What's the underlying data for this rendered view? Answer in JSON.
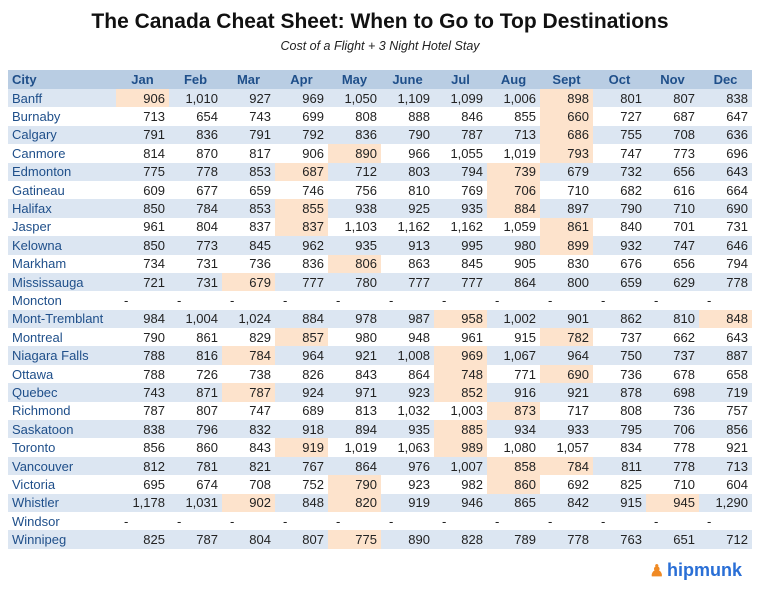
{
  "title": "The Canada Cheat Sheet: When to Go to Top Destinations",
  "subtitle": "Cost of a Flight + 3 Night Hotel Stay",
  "logo": "hipmunk",
  "highlight_color": "#fde3cc",
  "header_color": "#b9cde3",
  "stripe_color": "#dce6f2",
  "headers": [
    "City",
    "Jan",
    "Feb",
    "Mar",
    "Apr",
    "May",
    "June",
    "Jul",
    "Aug",
    "Sept",
    "Oct",
    "Nov",
    "Dec"
  ],
  "rows": [
    {
      "city": "Banff",
      "values": [
        "906",
        "1,010",
        "927",
        "969",
        "1,050",
        "1,109",
        "1,099",
        "1,006",
        "898",
        "801",
        "807",
        "838"
      ],
      "hl": [
        0,
        8
      ]
    },
    {
      "city": "Burnaby",
      "values": [
        "713",
        "654",
        "743",
        "699",
        "808",
        "888",
        "846",
        "855",
        "660",
        "727",
        "687",
        "647"
      ],
      "hl": [
        8
      ]
    },
    {
      "city": "Calgary",
      "values": [
        "791",
        "836",
        "791",
        "792",
        "836",
        "790",
        "787",
        "713",
        "686",
        "755",
        "708",
        "636"
      ],
      "hl": [
        8
      ]
    },
    {
      "city": "Canmore",
      "values": [
        "814",
        "870",
        "817",
        "906",
        "890",
        "966",
        "1,055",
        "1,019",
        "793",
        "747",
        "773",
        "696"
      ],
      "hl": [
        4,
        8
      ]
    },
    {
      "city": "Edmonton",
      "values": [
        "775",
        "778",
        "853",
        "687",
        "712",
        "803",
        "794",
        "739",
        "679",
        "732",
        "656",
        "643"
      ],
      "hl": [
        3,
        7
      ]
    },
    {
      "city": "Gatineau",
      "values": [
        "609",
        "677",
        "659",
        "746",
        "756",
        "810",
        "769",
        "706",
        "710",
        "682",
        "616",
        "664"
      ],
      "hl": [
        7
      ]
    },
    {
      "city": "Halifax",
      "values": [
        "850",
        "784",
        "853",
        "855",
        "938",
        "925",
        "935",
        "884",
        "897",
        "790",
        "710",
        "690"
      ],
      "hl": [
        3,
        7
      ]
    },
    {
      "city": "Jasper",
      "values": [
        "961",
        "804",
        "837",
        "837",
        "1,103",
        "1,162",
        "1,162",
        "1,059",
        "861",
        "840",
        "701",
        "731"
      ],
      "hl": [
        3,
        8
      ]
    },
    {
      "city": "Kelowna",
      "values": [
        "850",
        "773",
        "845",
        "962",
        "935",
        "913",
        "995",
        "980",
        "899",
        "932",
        "747",
        "646"
      ],
      "hl": [
        8
      ]
    },
    {
      "city": "Markham",
      "values": [
        "734",
        "731",
        "736",
        "836",
        "806",
        "863",
        "845",
        "905",
        "830",
        "676",
        "656",
        "794"
      ],
      "hl": [
        4
      ]
    },
    {
      "city": "Mississauga",
      "values": [
        "721",
        "731",
        "679",
        "777",
        "780",
        "777",
        "777",
        "864",
        "800",
        "659",
        "629",
        "778"
      ],
      "hl": [
        2
      ]
    },
    {
      "city": "Moncton",
      "values": [
        "-",
        "-",
        "-",
        "-",
        "-",
        "-",
        "-",
        "-",
        "-",
        "-",
        "-",
        "-"
      ],
      "hl": []
    },
    {
      "city": "Mont-Tremblant",
      "values": [
        "984",
        "1,004",
        "1,024",
        "884",
        "978",
        "987",
        "958",
        "1,002",
        "901",
        "862",
        "810",
        "848"
      ],
      "hl": [
        6,
        11
      ]
    },
    {
      "city": "Montreal",
      "values": [
        "790",
        "861",
        "829",
        "857",
        "980",
        "948",
        "961",
        "915",
        "782",
        "737",
        "662",
        "643"
      ],
      "hl": [
        3,
        8
      ]
    },
    {
      "city": "Niagara Falls",
      "values": [
        "788",
        "816",
        "784",
        "964",
        "921",
        "1,008",
        "969",
        "1,067",
        "964",
        "750",
        "737",
        "887"
      ],
      "hl": [
        2,
        6
      ]
    },
    {
      "city": "Ottawa",
      "values": [
        "788",
        "726",
        "738",
        "826",
        "843",
        "864",
        "748",
        "771",
        "690",
        "736",
        "678",
        "658"
      ],
      "hl": [
        6,
        8
      ]
    },
    {
      "city": "Quebec",
      "values": [
        "743",
        "871",
        "787",
        "924",
        "971",
        "923",
        "852",
        "916",
        "921",
        "878",
        "698",
        "719"
      ],
      "hl": [
        2,
        6
      ]
    },
    {
      "city": "Richmond",
      "values": [
        "787",
        "807",
        "747",
        "689",
        "813",
        "1,032",
        "1,003",
        "873",
        "717",
        "808",
        "736",
        "757"
      ],
      "hl": [
        7
      ]
    },
    {
      "city": "Saskatoon",
      "values": [
        "838",
        "796",
        "832",
        "918",
        "894",
        "935",
        "885",
        "934",
        "933",
        "795",
        "706",
        "856"
      ],
      "hl": [
        6
      ]
    },
    {
      "city": "Toronto",
      "values": [
        "856",
        "860",
        "843",
        "919",
        "1,019",
        "1,063",
        "989",
        "1,080",
        "1,057",
        "834",
        "778",
        "921"
      ],
      "hl": [
        3,
        6
      ]
    },
    {
      "city": "Vancouver",
      "values": [
        "812",
        "781",
        "821",
        "767",
        "864",
        "976",
        "1,007",
        "858",
        "784",
        "811",
        "778",
        "713"
      ],
      "hl": [
        7,
        8
      ]
    },
    {
      "city": "Victoria",
      "values": [
        "695",
        "674",
        "708",
        "752",
        "790",
        "923",
        "982",
        "860",
        "692",
        "825",
        "710",
        "604"
      ],
      "hl": [
        4,
        7
      ]
    },
    {
      "city": "Whistler",
      "values": [
        "1,178",
        "1,031",
        "902",
        "848",
        "820",
        "919",
        "946",
        "865",
        "842",
        "915",
        "945",
        "1,290"
      ],
      "hl": [
        2,
        4,
        10
      ]
    },
    {
      "city": "Windsor",
      "values": [
        "-",
        "-",
        "-",
        "-",
        "-",
        "-",
        "-",
        "-",
        "-",
        "-",
        "-",
        "-"
      ],
      "hl": []
    },
    {
      "city": "Winnipeg",
      "values": [
        "825",
        "787",
        "804",
        "807",
        "775",
        "890",
        "828",
        "789",
        "778",
        "763",
        "651",
        "712"
      ],
      "hl": [
        4
      ]
    }
  ]
}
